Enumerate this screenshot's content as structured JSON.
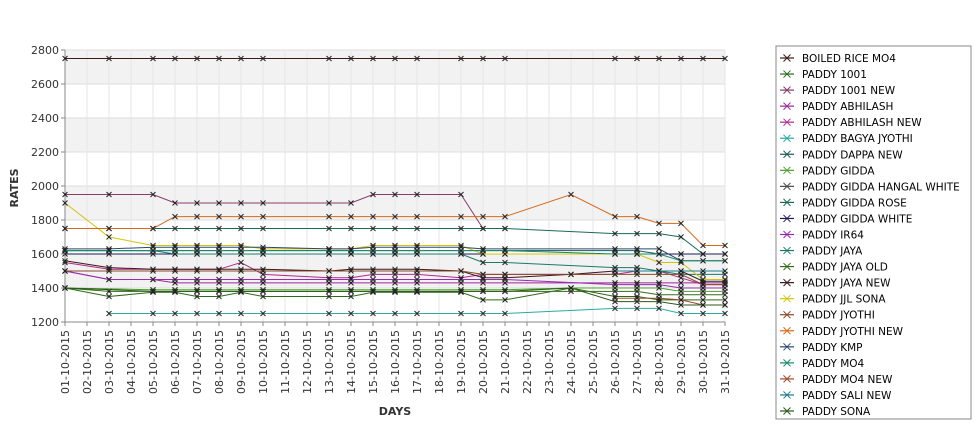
{
  "chart_data": {
    "type": "line",
    "title": "",
    "xlabel": "DAYS",
    "ylabel": "RATES",
    "ylim": [
      1200,
      2800
    ],
    "yticks": [
      1200,
      1400,
      1600,
      1800,
      2000,
      2200,
      2400,
      2600,
      2800
    ],
    "grid": true,
    "legend_position": "right",
    "marker": "x",
    "x": [
      "01-10-2015",
      "02-10-2015",
      "03-10-2015",
      "04-10-2015",
      "05-10-2015",
      "06-10-2015",
      "07-10-2015",
      "08-10-2015",
      "09-10-2015",
      "10-10-2015",
      "11-10-2015",
      "12-10-2015",
      "13-10-2015",
      "14-10-2015",
      "15-10-2015",
      "16-10-2015",
      "17-10-2015",
      "18-10-2015",
      "19-10-2015",
      "20-10-2015",
      "21-10-2015",
      "22-10-2015",
      "23-10-2015",
      "24-10-2015",
      "25-10-2015",
      "26-10-2015",
      "27-10-2015",
      "28-10-2015",
      "29-10-2015",
      "30-10-2015",
      "31-10-2015"
    ],
    "series": [
      {
        "name": "BOILED RICE MO4",
        "color": "#3a1a12",
        "values": [
          2750,
          null,
          2750,
          null,
          2750,
          2750,
          2750,
          2750,
          2750,
          2750,
          null,
          null,
          2750,
          2750,
          2750,
          2750,
          2750,
          null,
          2750,
          2750,
          2750,
          null,
          null,
          null,
          null,
          2750,
          2750,
          2750,
          2750,
          2750,
          2750
        ]
      },
      {
        "name": "PADDY 1001",
        "color": "#2a6a16",
        "values": [
          1400,
          null,
          1350,
          null,
          1375,
          1375,
          1350,
          1350,
          1375,
          1350,
          null,
          null,
          1350,
          1350,
          1375,
          1375,
          1375,
          null,
          1375,
          1330,
          1330,
          null,
          null,
          1400,
          null,
          1350,
          1350,
          1330,
          1330,
          1330,
          1330
        ]
      },
      {
        "name": "PADDY 1001 NEW",
        "color": "#8a3a6a",
        "values": [
          1950,
          null,
          1950,
          null,
          1950,
          1900,
          1900,
          1900,
          1900,
          1900,
          null,
          null,
          1900,
          1900,
          1950,
          1950,
          1950,
          null,
          1950,
          1750,
          1750,
          null,
          null,
          null,
          null,
          null,
          null,
          null,
          null,
          null,
          null
        ]
      },
      {
        "name": "PADDY ABHILASH",
        "color": "#9a2a9a",
        "values": [
          1500,
          null,
          1450,
          null,
          1450,
          1430,
          1430,
          1430,
          1430,
          1430,
          null,
          null,
          1430,
          1430,
          1430,
          1430,
          1430,
          null,
          1430,
          1430,
          1430,
          null,
          null,
          null,
          null,
          1430,
          1430,
          1430,
          1430,
          1430,
          1430
        ]
      },
      {
        "name": "PADDY ABHILASH NEW",
        "color": "#b02a8a",
        "values": [
          1550,
          null,
          1510,
          null,
          1510,
          1510,
          1510,
          1510,
          1550,
          1480,
          null,
          null,
          1460,
          1460,
          1480,
          1480,
          1480,
          null,
          1460,
          1480,
          1480,
          null,
          null,
          null,
          null,
          1480,
          1500,
          1500,
          1460,
          1420,
          1420
        ]
      },
      {
        "name": "PADDY BAGYA JYOTHI",
        "color": "#2aaaa0",
        "values": [
          null,
          null,
          1250,
          null,
          1250,
          1250,
          1250,
          1250,
          1250,
          1250,
          null,
          null,
          1250,
          1250,
          1250,
          1250,
          1250,
          null,
          1250,
          1250,
          1250,
          null,
          null,
          null,
          null,
          1280,
          1280,
          1280,
          1250,
          1250,
          1250
        ]
      },
      {
        "name": "PADDY DAPPA NEW",
        "color": "#1a5a5a",
        "values": [
          1620,
          null,
          1620,
          null,
          1620,
          1620,
          1620,
          1620,
          1620,
          1620,
          null,
          null,
          1620,
          1620,
          1620,
          1620,
          1620,
          null,
          1620,
          1620,
          1620,
          null,
          null,
          null,
          null,
          1620,
          1620,
          1600,
          1600,
          1600,
          1600
        ]
      },
      {
        "name": "PADDY GIDDA",
        "color": "#4aa02a",
        "values": [
          1400,
          null,
          null,
          null,
          1390,
          1390,
          1390,
          1390,
          1390,
          1390,
          null,
          null,
          1390,
          1390,
          1390,
          1390,
          1390,
          null,
          1390,
          1390,
          1390,
          null,
          null,
          1400,
          null,
          1400,
          1400,
          1400,
          1380,
          1380,
          1380
        ]
      },
      {
        "name": "PADDY GIDDA HANGAL WHITE",
        "color": "#4a4a4a",
        "values": [
          null,
          null,
          null,
          null,
          null,
          null,
          null,
          null,
          null,
          null,
          null,
          null,
          null,
          null,
          null,
          null,
          null,
          null,
          null,
          null,
          null,
          null,
          null,
          null,
          null,
          null,
          null,
          null,
          null,
          null,
          null
        ]
      },
      {
        "name": "PADDY GIDDA ROSE",
        "color": "#1a6a5a",
        "values": [
          1750,
          null,
          1750,
          null,
          1750,
          1750,
          1750,
          1750,
          1750,
          1750,
          null,
          null,
          1750,
          1750,
          1750,
          1750,
          1750,
          null,
          1750,
          1750,
          1750,
          null,
          null,
          null,
          null,
          1720,
          1720,
          1720,
          1700,
          1600,
          1600
        ]
      },
      {
        "name": "PADDY GIDDA WHITE",
        "color": "#1a1a5a",
        "values": [
          1600,
          null,
          1600,
          null,
          1600,
          1600,
          1600,
          1600,
          1600,
          1600,
          null,
          null,
          1600,
          1600,
          1600,
          1600,
          1600,
          null,
          1600,
          1600,
          1600,
          null,
          null,
          null,
          null,
          1600,
          1600,
          1600,
          1600,
          1600,
          1600
        ]
      },
      {
        "name": "PADDY IR64",
        "color": "#9a2ab0",
        "values": [
          1500,
          null,
          1450,
          null,
          1450,
          1450,
          1450,
          1450,
          1450,
          1450,
          null,
          null,
          1450,
          1450,
          1450,
          1450,
          1450,
          null,
          1450,
          1450,
          1450,
          null,
          null,
          null,
          null,
          1420,
          1420,
          1420,
          1400,
          1400,
          1400
        ]
      },
      {
        "name": "PADDY JAYA",
        "color": "#1a7a6a",
        "values": [
          1620,
          null,
          1620,
          null,
          1620,
          1600,
          1600,
          1600,
          1600,
          1600,
          null,
          null,
          1600,
          1600,
          1600,
          1600,
          1600,
          null,
          1600,
          1550,
          1550,
          null,
          null,
          null,
          null,
          1520,
          1520,
          1500,
          1480,
          1480,
          1480
        ]
      },
      {
        "name": "PADDY JAYA  OLD",
        "color": "#3a6a1a",
        "values": [
          1400,
          null,
          1380,
          null,
          1380,
          1380,
          1380,
          1380,
          1380,
          1380,
          null,
          null,
          1380,
          1380,
          1380,
          1380,
          1380,
          null,
          1380,
          1380,
          1380,
          null,
          null,
          1380,
          null,
          1380,
          1380,
          1360,
          1360,
          1360,
          1360
        ]
      },
      {
        "name": "PADDY JAYA NEW",
        "color": "#3a1a1a",
        "values": [
          1560,
          null,
          1520,
          null,
          1510,
          1510,
          1510,
          1510,
          1510,
          1510,
          null,
          null,
          1500,
          1510,
          1510,
          1510,
          1510,
          null,
          1500,
          1460,
          1460,
          null,
          null,
          1480,
          null,
          1500,
          1500,
          1500,
          1500,
          1440,
          1440
        ]
      },
      {
        "name": "PADDY JJL SONA",
        "color": "#d4c20a",
        "values": [
          1900,
          null,
          1700,
          null,
          1650,
          1650,
          1650,
          1650,
          1650,
          1630,
          null,
          null,
          1630,
          1630,
          1650,
          1650,
          1650,
          null,
          1650,
          1600,
          1600,
          null,
          null,
          null,
          null,
          1600,
          1600,
          1550,
          1550,
          1450,
          1450
        ]
      },
      {
        "name": "PADDY JYOTHI",
        "color": "#8a4a2a",
        "values": [
          1500,
          null,
          1500,
          null,
          1500,
          1500,
          1500,
          1500,
          1500,
          1500,
          null,
          null,
          1500,
          1500,
          1500,
          1500,
          1500,
          null,
          1500,
          1480,
          1480,
          null,
          null,
          1480,
          null,
          1480,
          1480,
          1480,
          1480,
          1420,
          1420
        ]
      },
      {
        "name": "PADDY JYOTHI NEW",
        "color": "#d46a1a",
        "values": [
          1750,
          null,
          1750,
          null,
          1750,
          1820,
          1820,
          1820,
          1820,
          1820,
          null,
          null,
          1820,
          1820,
          1820,
          1820,
          1820,
          null,
          1820,
          1820,
          1820,
          null,
          null,
          1950,
          null,
          1820,
          1820,
          1780,
          1780,
          1650,
          1650
        ]
      },
      {
        "name": "PADDY KMP",
        "color": "#2a4a6a",
        "values": [
          1630,
          null,
          1630,
          null,
          1640,
          1640,
          1640,
          1640,
          1640,
          1640,
          null,
          null,
          1630,
          1630,
          1640,
          1640,
          1640,
          null,
          1640,
          1630,
          1630,
          null,
          null,
          null,
          null,
          1630,
          1630,
          1630,
          1560,
          1560,
          1560
        ]
      },
      {
        "name": "PADDY MO4",
        "color": "#1a8a6a",
        "values": [
          1620,
          null,
          1620,
          null,
          1620,
          1620,
          1620,
          1620,
          1620,
          1620,
          null,
          null,
          1620,
          1620,
          1620,
          1620,
          1620,
          null,
          1620,
          1620,
          1620,
          null,
          null,
          null,
          null,
          1600,
          1600,
          1600,
          1560,
          1560,
          1560
        ]
      },
      {
        "name": "PADDY MO4 NEW",
        "color": "#a04a2a",
        "values": [
          null,
          null,
          null,
          null,
          null,
          null,
          null,
          null,
          null,
          null,
          null,
          null,
          null,
          null,
          null,
          null,
          null,
          null,
          null,
          null,
          null,
          null,
          null,
          null,
          null,
          1340,
          1340,
          1340,
          1330,
          1300,
          1300
        ]
      },
      {
        "name": "PADDY SALI NEW",
        "color": "#1a7a8a",
        "values": [
          null,
          null,
          null,
          null,
          null,
          null,
          null,
          null,
          null,
          null,
          null,
          null,
          null,
          null,
          null,
          null,
          null,
          null,
          null,
          null,
          null,
          null,
          null,
          null,
          null,
          1500,
          1500,
          1500,
          1500,
          1500,
          1500
        ]
      },
      {
        "name": "PADDY SONA",
        "color": "#2a5a1a",
        "values": [
          1400,
          null,
          null,
          null,
          1380,
          1380,
          1380,
          1380,
          1380,
          1380,
          null,
          null,
          1380,
          1380,
          1380,
          1380,
          1380,
          null,
          1380,
          1380,
          1380,
          null,
          null,
          1400,
          null,
          1320,
          1320,
          1320,
          1300,
          1300,
          1300
        ]
      }
    ]
  }
}
